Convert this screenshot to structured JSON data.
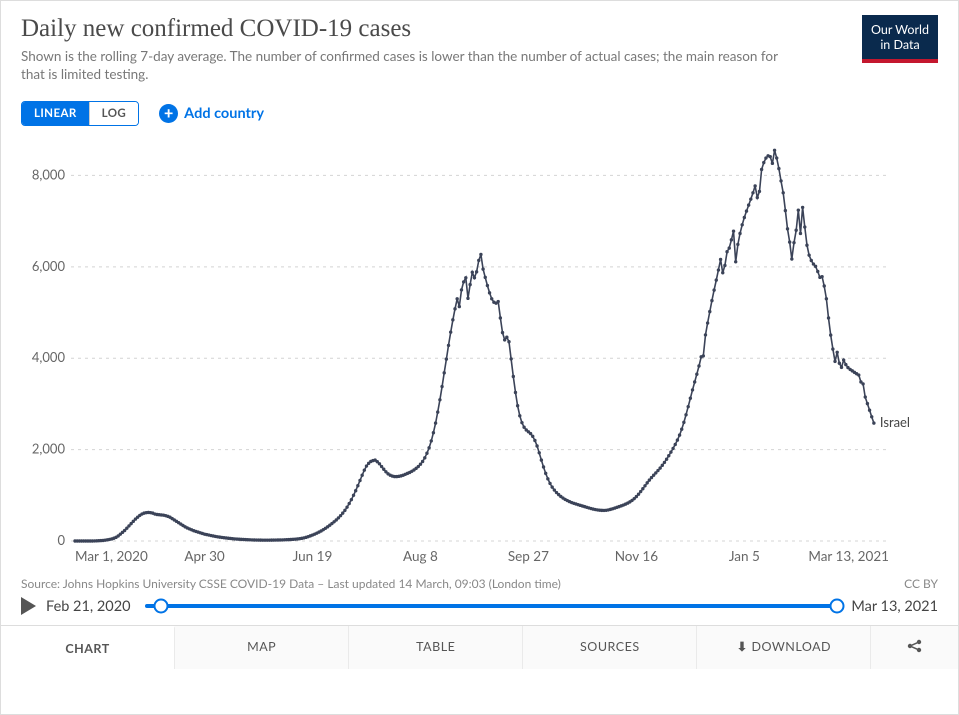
{
  "header": {
    "title": "Daily new confirmed COVID-19 cases",
    "subtitle": "Shown is the rolling 7-day average. The number of confirmed cases is lower than the number of actual cases; the main reason for that is limited testing.",
    "logo_line1": "Our World",
    "logo_line2": "in Data"
  },
  "controls": {
    "scale_linear": "LINEAR",
    "scale_log": "LOG",
    "add_country": "Add country"
  },
  "chart": {
    "type": "line",
    "series_name": "Israel",
    "series_color": "#3b4358",
    "background_color": "#ffffff",
    "grid_color": "#d4d4d4",
    "axis_text_color": "#666666",
    "ylim": [
      0,
      8600
    ],
    "yticks": [
      0,
      2000,
      4000,
      6000,
      8000
    ],
    "ytick_labels": [
      "0",
      "2,000",
      "4,000",
      "6,000",
      "8,000"
    ],
    "x_start_index": 0,
    "x_end_index": 377,
    "xticks": [
      0,
      60,
      110,
      160,
      210,
      260,
      310,
      377
    ],
    "xtick_labels": [
      "Mar 1, 2020",
      "Apr 30",
      "Jun 19",
      "Aug 8",
      "Sep 27",
      "Nov 16",
      "Jan 5",
      "Mar 13, 2021"
    ],
    "line_width": 1.6,
    "marker_radius": 1.7,
    "values": [
      0,
      0,
      0,
      0,
      0,
      0,
      0,
      0,
      0,
      2,
      4,
      6,
      9,
      12,
      18,
      25,
      35,
      45,
      60,
      80,
      110,
      150,
      190,
      230,
      280,
      330,
      380,
      430,
      480,
      520,
      560,
      590,
      610,
      620,
      625,
      620,
      610,
      590,
      580,
      575,
      570,
      565,
      555,
      540,
      520,
      490,
      460,
      430,
      400,
      370,
      340,
      310,
      285,
      265,
      245,
      225,
      210,
      195,
      180,
      165,
      150,
      140,
      130,
      120,
      110,
      100,
      92,
      85,
      78,
      72,
      66,
      60,
      55,
      50,
      46,
      42,
      39,
      36,
      33,
      30,
      28,
      26,
      24,
      22,
      21,
      20,
      19,
      18,
      18,
      18,
      18,
      19,
      20,
      21,
      22,
      23,
      24,
      26,
      28,
      30,
      33,
      36,
      40,
      45,
      50,
      58,
      68,
      80,
      95,
      112,
      130,
      150,
      172,
      195,
      220,
      248,
      278,
      310,
      345,
      382,
      420,
      460,
      505,
      555,
      610,
      670,
      740,
      820,
      905,
      1000,
      1100,
      1210,
      1325,
      1440,
      1550,
      1640,
      1700,
      1740,
      1760,
      1770,
      1735,
      1690,
      1630,
      1570,
      1515,
      1470,
      1440,
      1420,
      1410,
      1410,
      1415,
      1425,
      1440,
      1460,
      1480,
      1500,
      1525,
      1555,
      1590,
      1630,
      1680,
      1740,
      1820,
      1920,
      2040,
      2190,
      2370,
      2580,
      2820,
      3090,
      3380,
      3680,
      3980,
      4280,
      4570,
      4840,
      5080,
      5300,
      5130,
      5495,
      5670,
      5760,
      5310,
      5610,
      5880,
      5760,
      5890,
      6140,
      6270,
      5950,
      5770,
      5590,
      5430,
      5300,
      5225,
      5205,
      5240,
      4880,
      4560,
      4400,
      4460,
      4360,
      3985,
      3600,
      3250,
      2960,
      2740,
      2590,
      2490,
      2430,
      2390,
      2350,
      2290,
      2200,
      2080,
      1930,
      1770,
      1620,
      1480,
      1360,
      1260,
      1180,
      1115,
      1060,
      1015,
      975,
      940,
      910,
      885,
      862,
      842,
      825,
      810,
      795,
      780,
      766,
      752,
      738,
      724,
      710,
      698,
      688,
      680,
      674,
      670,
      669,
      672,
      680,
      692,
      705,
      720,
      736,
      752,
      769,
      787,
      807,
      830,
      856,
      888,
      926,
      972,
      1024,
      1082,
      1144,
      1208,
      1272,
      1332,
      1388,
      1440,
      1490,
      1542,
      1596,
      1656,
      1720,
      1790,
      1866,
      1946,
      2026,
      2112,
      2208,
      2318,
      2446,
      2596,
      2762,
      2940,
      3124,
      3306,
      3480,
      3650,
      3830,
      4030,
      4050,
      4510,
      4770,
      5020,
      5260,
      5490,
      5710,
      5930,
      6160,
      5870,
      6030,
      6330,
      6410,
      6590,
      6780,
      6110,
      6490,
      6730,
      6920,
      7080,
      7220,
      7350,
      7480,
      7620,
      7770,
      7516,
      7650,
      8130,
      8280,
      8380,
      8430,
      8410,
      8264,
      8550,
      8380,
      8150,
      7880,
      7620,
      7230,
      6830,
      6540,
      6170,
      6528,
      6800,
      7240,
      6730,
      7300,
      6870,
      6472,
      6255,
      6138,
      6061,
      6010,
      5898,
      5770,
      5785,
      5580,
      5300,
      4880,
      4505,
      4200,
      3930,
      4130,
      3890,
      3800,
      3960,
      3860,
      3795,
      3755,
      3723,
      3690,
      3660,
      3632,
      3480,
      3438,
      3150,
      3006,
      2862,
      2718,
      2580
    ]
  },
  "source": {
    "text": "Source: Johns Hopkins University CSSE COVID-19 Data – Last updated 14 March, 09:03 (London time)",
    "license": "CC BY"
  },
  "timeline": {
    "start_label": "Feb 21, 2020",
    "end_label": "Mar 13, 2021",
    "handle_left_pct": 2.4,
    "handle_right_pct": 100
  },
  "tabs": {
    "chart": "CHART",
    "map": "MAP",
    "table": "TABLE",
    "sources": "SOURCES",
    "download": "DOWNLOAD",
    "share": ""
  }
}
